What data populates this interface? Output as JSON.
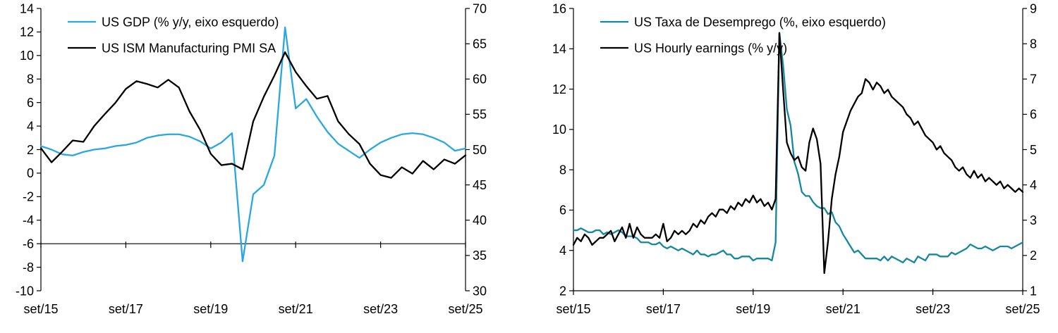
{
  "page": {
    "background": "#ffffff"
  },
  "chart_data": [
    {
      "name": "chart-gdp-ism",
      "type": "line",
      "title": "",
      "legend_position": "top-left-inside",
      "grid": false,
      "x_axis": {
        "min": 0,
        "max": 120,
        "tick_positions": [
          0,
          24,
          48,
          72,
          96,
          120
        ],
        "tick_labels": [
          "set/15",
          "set/17",
          "set/19",
          "set/21",
          "set/23",
          "set/25"
        ]
      },
      "left_axis": {
        "min": -10,
        "max": 14,
        "ticks": [
          14,
          12,
          10,
          8,
          6,
          4,
          2,
          0,
          -2,
          -4,
          -6,
          -8,
          -10
        ]
      },
      "right_axis": {
        "min": 30,
        "max": 70,
        "ticks": [
          70,
          65,
          60,
          55,
          50,
          45,
          40,
          35,
          30
        ]
      },
      "baseline_left_value": -6,
      "series": [
        {
          "id": "gdp-line",
          "name": "US GDP (% y/y, eixo esquerdo)",
          "axis": "left",
          "color": "#29A8DF",
          "y": [
            2.3,
            2.0,
            1.6,
            1.5,
            1.8,
            2.0,
            2.1,
            2.3,
            2.4,
            2.6,
            3.0,
            3.2,
            3.3,
            3.3,
            3.1,
            2.7,
            2.1,
            2.6,
            3.4,
            -7.5,
            -1.8,
            -1.0,
            1.5,
            12.4,
            5.5,
            6.3,
            4.8,
            3.5,
            2.5,
            1.9,
            1.3,
            2.0,
            2.6,
            3.0,
            3.3,
            3.4,
            3.3,
            3.0,
            2.6,
            1.9,
            2.1
          ]
        },
        {
          "id": "ism-line",
          "name": "US ISM Manufacturing PMI SA",
          "axis": "right",
          "color": "#000000",
          "y": [
            50.2,
            48.2,
            49.7,
            51.3,
            51.1,
            53.3,
            55.0,
            56.6,
            58.6,
            59.7,
            59.3,
            58.8,
            59.9,
            58.8,
            55.4,
            52.8,
            49.4,
            47.8,
            48.0,
            47.2,
            54.0,
            57.5,
            60.5,
            63.8,
            61.0,
            59.0,
            57.2,
            57.6,
            54.0,
            52.2,
            50.8,
            48.0,
            46.4,
            46.0,
            47.5,
            46.6,
            48.4,
            47.2,
            48.6,
            48.0,
            49.2
          ]
        }
      ]
    },
    {
      "name": "chart-unemployment-earnings",
      "type": "line",
      "title": "",
      "legend_position": "top-left-inside",
      "grid": false,
      "x_axis": {
        "min": 0,
        "max": 120,
        "tick_positions": [
          0,
          24,
          48,
          72,
          96,
          120
        ],
        "tick_labels": [
          "set/15",
          "set/17",
          "set/19",
          "set/21",
          "set/23",
          "set/25"
        ]
      },
      "left_axis": {
        "min": 2,
        "max": 16,
        "ticks": [
          16,
          14,
          12,
          10,
          8,
          6,
          4,
          2
        ]
      },
      "right_axis": {
        "min": 1,
        "max": 9,
        "ticks": [
          9,
          8,
          7,
          6,
          5,
          4,
          3,
          2,
          1
        ]
      },
      "baseline_left_value": 2,
      "series": [
        {
          "id": "unemployment-line",
          "name": "US Taxa de Desemprego (%, eixo esquerdo)",
          "axis": "left",
          "color": "#15879E",
          "y": [
            5.0,
            5.0,
            5.1,
            5.0,
            4.9,
            4.9,
            5.0,
            5.0,
            4.8,
            4.9,
            4.8,
            4.9,
            5.0,
            4.9,
            4.7,
            4.7,
            4.7,
            4.6,
            4.4,
            4.4,
            4.4,
            4.3,
            4.3,
            4.4,
            4.2,
            4.1,
            4.2,
            4.1,
            4.0,
            4.1,
            4.0,
            3.9,
            3.8,
            4.0,
            3.8,
            3.8,
            3.7,
            3.8,
            3.8,
            3.9,
            4.0,
            3.8,
            3.8,
            3.6,
            3.6,
            3.7,
            3.7,
            3.7,
            3.5,
            3.6,
            3.6,
            3.6,
            3.6,
            3.5,
            4.4,
            14.8,
            13.2,
            11.0,
            10.2,
            8.4,
            7.8,
            6.9,
            6.7,
            6.7,
            6.4,
            6.2,
            6.1,
            6.1,
            5.8,
            5.9,
            5.4,
            5.2,
            4.8,
            4.5,
            4.2,
            3.9,
            4.0,
            3.8,
            3.6,
            3.6,
            3.6,
            3.6,
            3.5,
            3.7,
            3.5,
            3.7,
            3.6,
            3.5,
            3.4,
            3.6,
            3.5,
            3.4,
            3.7,
            3.6,
            3.5,
            3.8,
            3.8,
            3.8,
            3.7,
            3.7,
            3.7,
            3.9,
            3.8,
            3.9,
            4.0,
            4.1,
            4.3,
            4.2,
            4.1,
            4.1,
            4.2,
            4.1,
            4.0,
            4.1,
            4.2,
            4.2,
            4.2,
            4.1,
            4.2,
            4.3,
            4.4
          ]
        },
        {
          "id": "hourly-earnings-line",
          "name": "US Hourly earnings (% y/y)",
          "axis": "right",
          "color": "#000000",
          "y": [
            2.3,
            2.5,
            2.4,
            2.6,
            2.5,
            2.3,
            2.4,
            2.5,
            2.5,
            2.6,
            2.7,
            2.4,
            2.6,
            2.8,
            2.5,
            2.9,
            2.5,
            2.8,
            2.6,
            2.5,
            2.5,
            2.5,
            2.6,
            2.5,
            2.9,
            2.4,
            2.5,
            2.7,
            2.6,
            2.7,
            2.6,
            2.7,
            2.9,
            2.8,
            3.0,
            2.9,
            3.1,
            3.2,
            3.1,
            3.3,
            3.3,
            3.2,
            3.4,
            3.3,
            3.5,
            3.4,
            3.6,
            3.5,
            3.7,
            3.5,
            3.6,
            3.4,
            3.5,
            3.3,
            3.6,
            8.3,
            6.7,
            5.2,
            4.9,
            4.7,
            4.8,
            4.5,
            4.4,
            5.2,
            5.6,
            5.3,
            4.6,
            1.5,
            2.4,
            3.6,
            4.3,
            4.8,
            5.5,
            5.8,
            6.1,
            6.3,
            6.5,
            6.6,
            7.0,
            6.9,
            6.7,
            6.9,
            6.8,
            6.6,
            6.7,
            6.5,
            6.4,
            6.3,
            6.2,
            6.0,
            5.9,
            5.7,
            5.8,
            5.6,
            5.4,
            5.3,
            5.2,
            5.0,
            5.1,
            4.9,
            4.8,
            4.7,
            4.5,
            4.4,
            4.5,
            4.3,
            4.2,
            4.4,
            4.2,
            4.3,
            4.1,
            4.2,
            4.1,
            4.0,
            4.1,
            3.9,
            4.0,
            3.9,
            3.8,
            3.9,
            3.8
          ]
        }
      ]
    }
  ]
}
